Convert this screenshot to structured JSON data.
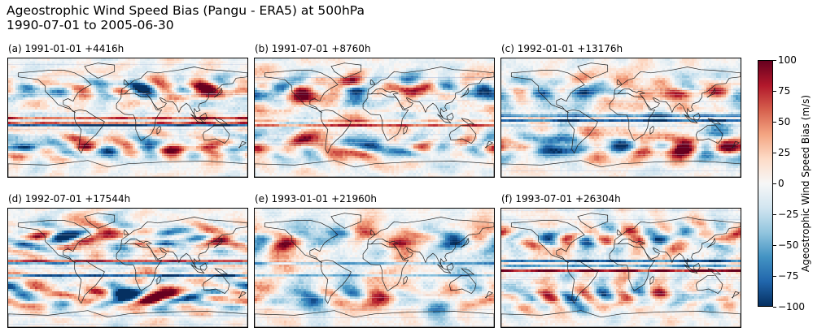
{
  "figure": {
    "title": "Ageostrophic Wind Speed Bias (Pangu - ERA5) at 500hPa\n1990-07-01 to 2005-06-30"
  },
  "panels": [
    {
      "label": "(a) 1991-01-01 +4416h",
      "seed": 11
    },
    {
      "label": "(b) 1991-07-01 +8760h",
      "seed": 23
    },
    {
      "label": "(c) 1992-01-01 +13176h",
      "seed": 37
    },
    {
      "label": "(d) 1992-07-01 +17544h",
      "seed": 41
    },
    {
      "label": "(e) 1993-01-01 +21960h",
      "seed": 53
    },
    {
      "label": "(f) 1993-07-01 +26304h",
      "seed": 67
    }
  ],
  "colorbar": {
    "label": "Ageostrophic Wind Speed Bias (m/s)",
    "colormap": "RdBu_r",
    "vmin": -100,
    "vmax": 100,
    "ticks": [
      "100",
      "75",
      "50",
      "25",
      "0",
      "−25",
      "−50",
      "−75",
      "−100"
    ],
    "colors": [
      "#053061",
      "#2166ac",
      "#4393c3",
      "#92c5de",
      "#d1e5f0",
      "#f7f7f7",
      "#fddbc7",
      "#f4a582",
      "#d6604d",
      "#b2182b",
      "#67001f"
    ]
  }
}
